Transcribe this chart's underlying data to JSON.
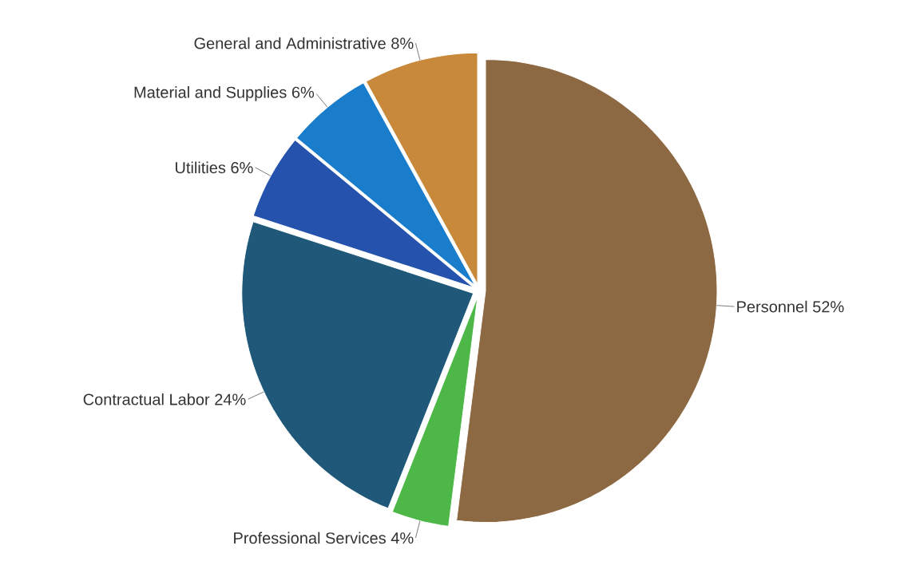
{
  "chart_data": {
    "type": "pie",
    "categories": [
      "Personnel",
      "Professional Services",
      "Contractual Labor",
      "Utilities",
      "Material and Supplies",
      "General and Administrative"
    ],
    "values": [
      52,
      4,
      24,
      6,
      6,
      8
    ],
    "value_labels": [
      "52%",
      "4%",
      "24%",
      "6%",
      "6%",
      "8%"
    ],
    "colors": [
      "#8c6943",
      "#4db848",
      "#1f5878",
      "#2452ad",
      "#1a7dcc",
      "#c88a3a"
    ]
  }
}
